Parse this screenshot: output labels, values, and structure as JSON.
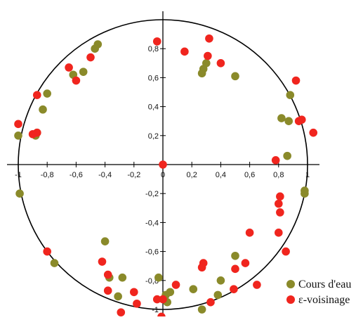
{
  "chart_data": {
    "type": "scatter",
    "title": "",
    "xlabel": "",
    "ylabel": "",
    "xlim": [
      -1.1,
      1.1
    ],
    "ylim": [
      -1.1,
      1.1
    ],
    "grid": false,
    "unit_circle": true,
    "legend_position": "bottom-right",
    "x_ticks": [
      {
        "value": -1,
        "label": "-1"
      },
      {
        "value": -0.8,
        "label": "-0,8"
      },
      {
        "value": -0.6,
        "label": "-0,6"
      },
      {
        "value": -0.4,
        "label": "-0,4"
      },
      {
        "value": -0.2,
        "label": "-0,2"
      },
      {
        "value": 0,
        "label": "0"
      },
      {
        "value": 0.2,
        "label": "0,2"
      },
      {
        "value": 0.4,
        "label": "0,4"
      },
      {
        "value": 0.6,
        "label": "0,6"
      },
      {
        "value": 0.8,
        "label": "0,8"
      },
      {
        "value": 1,
        "label": "1"
      }
    ],
    "y_ticks": [
      {
        "value": 0.8,
        "label": "0,8"
      },
      {
        "value": 0.6,
        "label": "0,6"
      },
      {
        "value": 0.4,
        "label": "0,4"
      },
      {
        "value": 0.2,
        "label": "0,2"
      },
      {
        "value": -0.2,
        "label": "-0,2"
      },
      {
        "value": -0.4,
        "label": "-0,4"
      },
      {
        "value": -0.6,
        "label": "-0,6"
      },
      {
        "value": -0.8,
        "label": "-0,8"
      },
      {
        "value": -1,
        "label": "-1"
      }
    ],
    "series": [
      {
        "name": "Cours d'eau",
        "color": "#8a8a2a",
        "points": [
          [
            -0.45,
            0.83
          ],
          [
            -0.47,
            0.8
          ],
          [
            -0.55,
            0.64
          ],
          [
            -0.62,
            0.62
          ],
          [
            -0.8,
            0.49
          ],
          [
            -0.83,
            0.38
          ],
          [
            -0.87,
            0.22
          ],
          [
            -0.88,
            0.2
          ],
          [
            -1.0,
            0.2
          ],
          [
            -0.99,
            -0.2
          ],
          [
            -0.75,
            -0.68
          ],
          [
            -0.4,
            -0.53
          ],
          [
            -0.37,
            -0.78
          ],
          [
            -0.28,
            -0.78
          ],
          [
            -0.31,
            -0.91
          ],
          [
            -0.03,
            -0.78
          ],
          [
            0.02,
            -0.9
          ],
          [
            0.05,
            -0.88
          ],
          [
            0.03,
            -0.95
          ],
          [
            0.21,
            -0.86
          ],
          [
            0.27,
            -1.0
          ],
          [
            0.38,
            -0.9
          ],
          [
            0.4,
            -0.8
          ],
          [
            0.5,
            -0.63
          ],
          [
            0.27,
            0.63
          ],
          [
            0.28,
            0.66
          ],
          [
            0.3,
            0.7
          ],
          [
            0.5,
            0.61
          ],
          [
            0.88,
            0.48
          ],
          [
            0.82,
            0.32
          ],
          [
            0.87,
            0.3
          ],
          [
            0.86,
            0.06
          ],
          [
            0.98,
            -0.18
          ],
          [
            0.98,
            -0.2
          ]
        ]
      },
      {
        "name": "ε-voisinage",
        "color": "#f0251e",
        "points": [
          [
            -0.5,
            0.74
          ],
          [
            -0.65,
            0.67
          ],
          [
            -0.6,
            0.58
          ],
          [
            -0.87,
            0.48
          ],
          [
            -1.0,
            0.28
          ],
          [
            -0.87,
            0.22
          ],
          [
            -0.9,
            0.21
          ],
          [
            -0.8,
            -0.6
          ],
          [
            -0.42,
            -0.67
          ],
          [
            -0.38,
            -0.76
          ],
          [
            -0.38,
            -0.87
          ],
          [
            -0.2,
            -0.88
          ],
          [
            -0.18,
            -0.96
          ],
          [
            -0.29,
            -1.02
          ],
          [
            -0.04,
            -0.93
          ],
          [
            0.0,
            -0.93
          ],
          [
            -0.01,
            -1.05
          ],
          [
            0.09,
            -0.83
          ],
          [
            0.28,
            -0.68
          ],
          [
            0.27,
            -0.71
          ],
          [
            0.33,
            -0.95
          ],
          [
            0.49,
            -0.86
          ],
          [
            0.5,
            -0.72
          ],
          [
            0.57,
            -0.68
          ],
          [
            0.6,
            -0.47
          ],
          [
            0.65,
            -0.83
          ],
          [
            0.8,
            -0.47
          ],
          [
            0.8,
            -0.27
          ],
          [
            0.81,
            -0.33
          ],
          [
            0.81,
            -0.22
          ],
          [
            0.85,
            -0.6
          ],
          [
            -0.04,
            0.85
          ],
          [
            0.15,
            0.78
          ],
          [
            0.32,
            0.87
          ],
          [
            0.31,
            0.75
          ],
          [
            0.4,
            0.7
          ],
          [
            0.92,
            0.58
          ],
          [
            0.94,
            0.3
          ],
          [
            0.96,
            0.31
          ],
          [
            1.04,
            0.22
          ],
          [
            0.78,
            0.03
          ],
          [
            0.0,
            0.0
          ]
        ]
      }
    ]
  }
}
